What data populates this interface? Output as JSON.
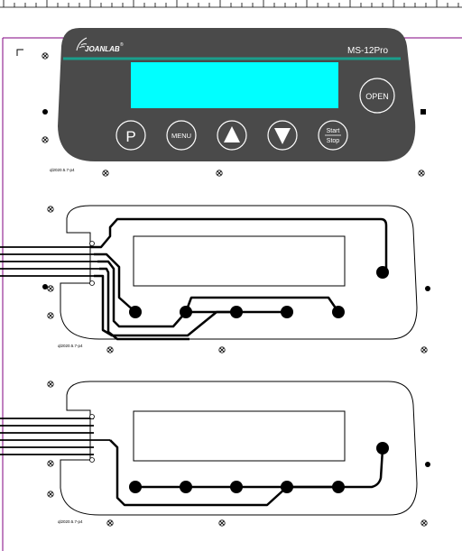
{
  "panel": {
    "brand": "JOANLAB",
    "brand_mark": "®",
    "model": "MS-12Pro",
    "accent_color": "#1a9e8c",
    "body_color": "#4a4a4a",
    "display_color": "#00ffff",
    "buttons": {
      "p": "P",
      "menu": "MENU",
      "up_icon": "triangle-up-icon",
      "down_icon": "triangle-down-icon",
      "start": "Start",
      "stop": "Stop",
      "open": "OPEN"
    }
  },
  "captions": {
    "drawing_note": "ql2020.5.7-p4"
  },
  "layers": [
    {
      "name": "graphic-overlay"
    },
    {
      "name": "circuit-layer-1"
    },
    {
      "name": "circuit-layer-2"
    }
  ],
  "colors": {
    "frame_line": "#800080",
    "trace": "#000000"
  }
}
